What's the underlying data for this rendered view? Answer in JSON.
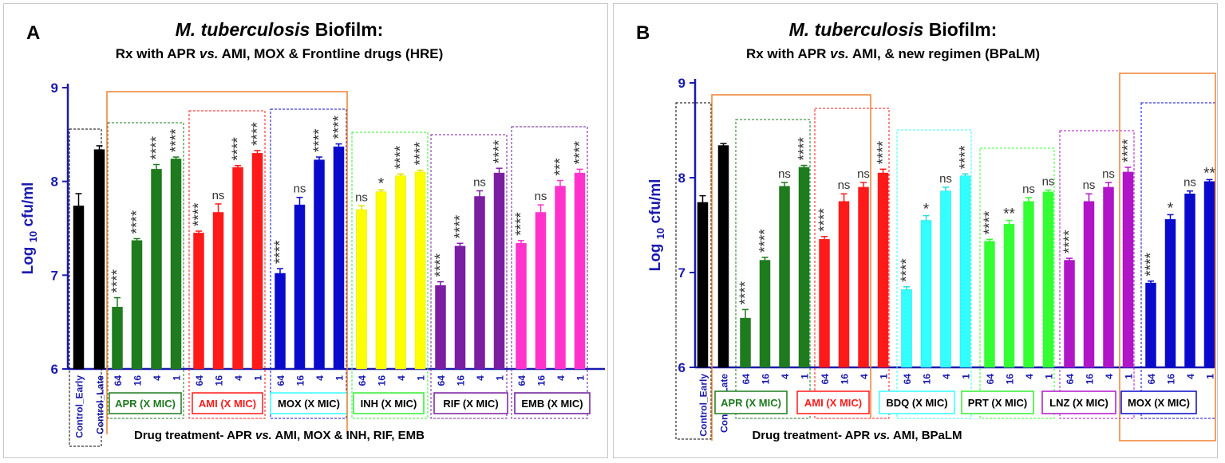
{
  "colors": {
    "axis": "#1a1ab0",
    "green": "#1e7b1e",
    "red": "#ff1a1a",
    "blue": "#0a0acc",
    "yellow": "#ffff00",
    "purple": "#7b1fa2",
    "magenta": "#ff33cc",
    "cyan": "#33ffff",
    "lime": "#33ff33",
    "violet": "#b015c8",
    "black": "#000000",
    "orange": "#f08030"
  },
  "chart_data": [
    {
      "type": "bar",
      "panel_letter": "A",
      "title_italic": "M. tuberculosis",
      "title_rest": " Biofilm:",
      "subtitle_pre": "Rx with APR ",
      "subtitle_vs": "vs.",
      "subtitle_post": " AMI, MOX & Frontline drugs (HRE)",
      "ylabel": "Log 10 cfu/ml",
      "ylabel_main": "Log",
      "ylabel_sub": "10",
      "ylabel_unit": "cfu/ml",
      "ylim": [
        6,
        9
      ],
      "yticks": [
        "6",
        "7",
        "8",
        "9"
      ],
      "xlabel_pre": "Drug treatment- APR ",
      "xlabel_vs": "vs.",
      "xlabel_post": " AMI,  MOX & INH, RIF, EMB",
      "controls": [
        {
          "label": "Control_Early",
          "value": 7.74,
          "err": 0.13
        },
        {
          "label": "Control_Late",
          "value": 8.34,
          "err": 0.04
        }
      ],
      "dose_labels": [
        "64",
        "16",
        "4",
        "1"
      ],
      "groups": [
        {
          "name": "APR (X MIC)",
          "color": "#1e7b1e",
          "values": [
            6.66,
            7.37,
            8.13,
            8.24
          ],
          "errors": [
            0.1,
            0.02,
            0.05,
            0.02
          ],
          "sig": [
            "****",
            "****",
            "****",
            "****"
          ]
        },
        {
          "name": "AMI (X MIC)",
          "color": "#ff1a1a",
          "values": [
            7.45,
            7.67,
            8.15,
            8.3
          ],
          "errors": [
            0.02,
            0.09,
            0.02,
            0.03
          ],
          "sig": [
            "****",
            "ns",
            "****",
            "****"
          ]
        },
        {
          "name": "MOX (X MIC)",
          "color": "#0a0acc",
          "values": [
            7.02,
            7.75,
            8.23,
            8.37
          ],
          "errors": [
            0.05,
            0.08,
            0.03,
            0.03
          ],
          "sig": [
            "****",
            "ns",
            "****",
            "****"
          ]
        },
        {
          "name": "INH (X MIC)",
          "color": "#ffff00",
          "values": [
            7.7,
            7.89,
            8.06,
            8.1
          ],
          "errors": [
            0.04,
            0.02,
            0.02,
            0.02
          ],
          "sig": [
            "ns",
            "*",
            "****",
            "****"
          ]
        },
        {
          "name": "RIF (X MIC)",
          "color": "#7b1fa2",
          "values": [
            6.89,
            7.31,
            7.84,
            8.09
          ],
          "errors": [
            0.04,
            0.03,
            0.06,
            0.05
          ],
          "sig": [
            "****",
            "****",
            "ns",
            "****"
          ]
        },
        {
          "name": "EMB (X MIC)",
          "color": "#ff33cc",
          "values": [
            7.34,
            7.67,
            7.95,
            8.09
          ],
          "errors": [
            0.03,
            0.08,
            0.06,
            0.04
          ],
          "sig": [
            "****",
            "ns",
            "***",
            "****"
          ]
        }
      ]
    },
    {
      "type": "bar",
      "panel_letter": "B",
      "title_italic": "M. tuberculosis",
      "title_rest": " Biofilm:",
      "subtitle_pre": "Rx with APR ",
      "subtitle_vs": "vs.",
      "subtitle_post": " AMI, & new regimen (BPaLM)",
      "ylabel": "Log 10 cfu/ml",
      "ylabel_main": "Log",
      "ylabel_sub": "10",
      "ylabel_unit": "cfu/ml",
      "ylim": [
        6,
        9
      ],
      "yticks": [
        "6",
        "7",
        "8",
        "9"
      ],
      "xlabel_pre": "Drug treatment- APR ",
      "xlabel_vs": "vs.",
      "xlabel_post": " AMI, BPaLM",
      "controls": [
        {
          "label": "Control_Early",
          "value": 7.74,
          "err": 0.07
        },
        {
          "label": "Control_Late",
          "value": 8.34,
          "err": 0.02
        }
      ],
      "dose_labels": [
        "64",
        "16",
        "4",
        "1"
      ],
      "groups": [
        {
          "name": "APR (X MIC)",
          "color": "#1e7b1e",
          "values": [
            6.52,
            7.13,
            7.91,
            8.11
          ],
          "errors": [
            0.09,
            0.03,
            0.04,
            0.02
          ],
          "sig": [
            "****",
            "****",
            "ns",
            "****"
          ]
        },
        {
          "name": "AMI (X MIC)",
          "color": "#ff1a1a",
          "values": [
            7.35,
            7.75,
            7.9,
            8.05
          ],
          "errors": [
            0.03,
            0.08,
            0.05,
            0.04
          ],
          "sig": [
            "****",
            "ns",
            "ns",
            "****"
          ]
        },
        {
          "name": "BDQ (X MIC)",
          "color": "#33ffff",
          "values": [
            6.82,
            7.55,
            7.86,
            8.02
          ],
          "errors": [
            0.03,
            0.05,
            0.04,
            0.02
          ],
          "sig": [
            "****",
            "*",
            "ns",
            "****"
          ]
        },
        {
          "name": "PRT (X MIC)",
          "color": "#33ff33",
          "values": [
            7.33,
            7.51,
            7.75,
            7.85
          ],
          "errors": [
            0.02,
            0.04,
            0.04,
            0.02
          ],
          "sig": [
            "****",
            "**",
            "ns",
            "ns"
          ]
        },
        {
          "name": "LNZ (X MIC)",
          "color": "#b015c8",
          "values": [
            7.13,
            7.75,
            7.9,
            8.06
          ],
          "errors": [
            0.02,
            0.08,
            0.05,
            0.05
          ],
          "sig": [
            "****",
            "ns",
            "ns",
            "****"
          ]
        },
        {
          "name": "MOX (X MIC)",
          "color": "#0a0acc",
          "values": [
            6.89,
            7.56,
            7.83,
            7.96
          ],
          "errors": [
            0.02,
            0.05,
            0.03,
            0.02
          ],
          "sig": [
            "****",
            "*",
            "ns",
            "**"
          ]
        }
      ]
    }
  ]
}
